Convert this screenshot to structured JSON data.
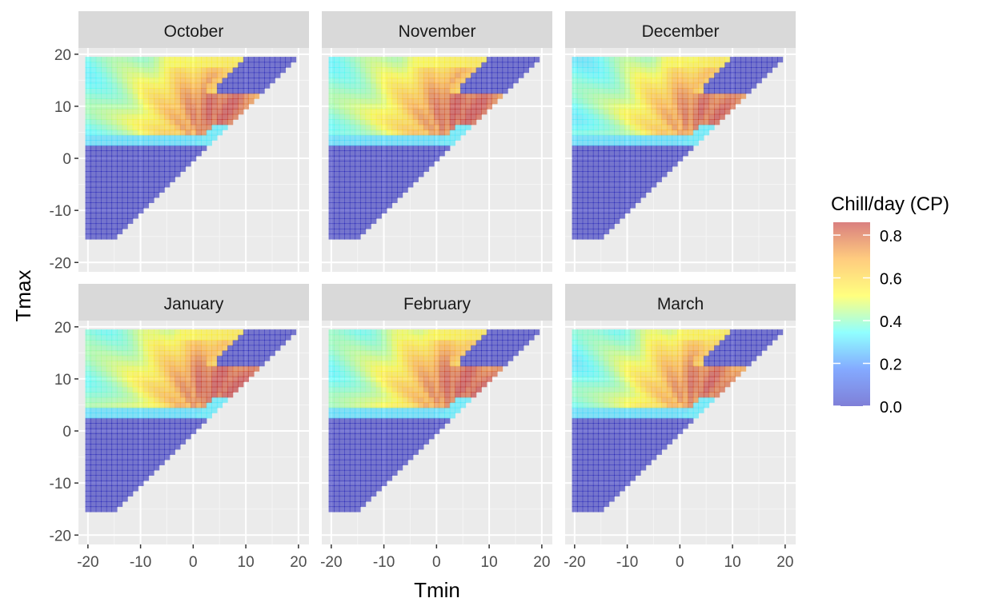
{
  "chart_data": {
    "type": "heatmap",
    "facets": [
      "October",
      "November",
      "December",
      "January",
      "February",
      "March"
    ],
    "facet_layout": "2 rows x 3 columns",
    "xlabel": "Tmin",
    "ylabel": "Tmax",
    "x_ticks": [
      -20,
      -10,
      0,
      10,
      20
    ],
    "y_ticks": [
      -20,
      -10,
      0,
      10,
      20
    ],
    "xlim": [
      -21.8,
      22
    ],
    "ylim": [
      -21.8,
      21.2
    ],
    "data_domain": {
      "tmin": [
        -20,
        20
      ],
      "tmax": [
        -15,
        19
      ],
      "step": 1
    },
    "grid": true,
    "legend": {
      "title": "Chill/day (CP)",
      "position": "right",
      "ticks": [
        0.0,
        0.2,
        0.4,
        0.6,
        0.8
      ],
      "tick_labels": [
        "0.0",
        "0.2",
        "0.4",
        "0.6",
        "0.8"
      ],
      "range": [
        0,
        0.86
      ],
      "colors": [
        "#0000b0",
        "#0a55ff",
        "#22ffff",
        "#ffff00",
        "#ff9900",
        "#b40000"
      ],
      "opacity": 0.5
    },
    "value_model": {
      "cold_zone": {
        "tmax_below": 2.5,
        "value": 0.0
      },
      "warm_zone": {
        "tmax_above": 19.5,
        "value": 0.0
      },
      "near_diagonal_cold": {
        "tmax_minus_tmin_below": 2.5,
        "tmax_below": 6.5,
        "value": 0.32
      },
      "hot_corner": {
        "tmax_above": 12.5,
        "tmin_above": 4.5,
        "value": 0.0
      },
      "peak": {
        "tmin": 6,
        "tmax": 9,
        "value": 0.85
      },
      "left_edge_value": 0.35,
      "bottom_band": {
        "tmax": [
          2.5,
          4.0
        ],
        "value": 0.3
      }
    },
    "panel_variation": {
      "October": 0.0,
      "November": 0.01,
      "December": -0.02,
      "January": 0.01,
      "February": 0.0,
      "March": -0.02
    }
  }
}
